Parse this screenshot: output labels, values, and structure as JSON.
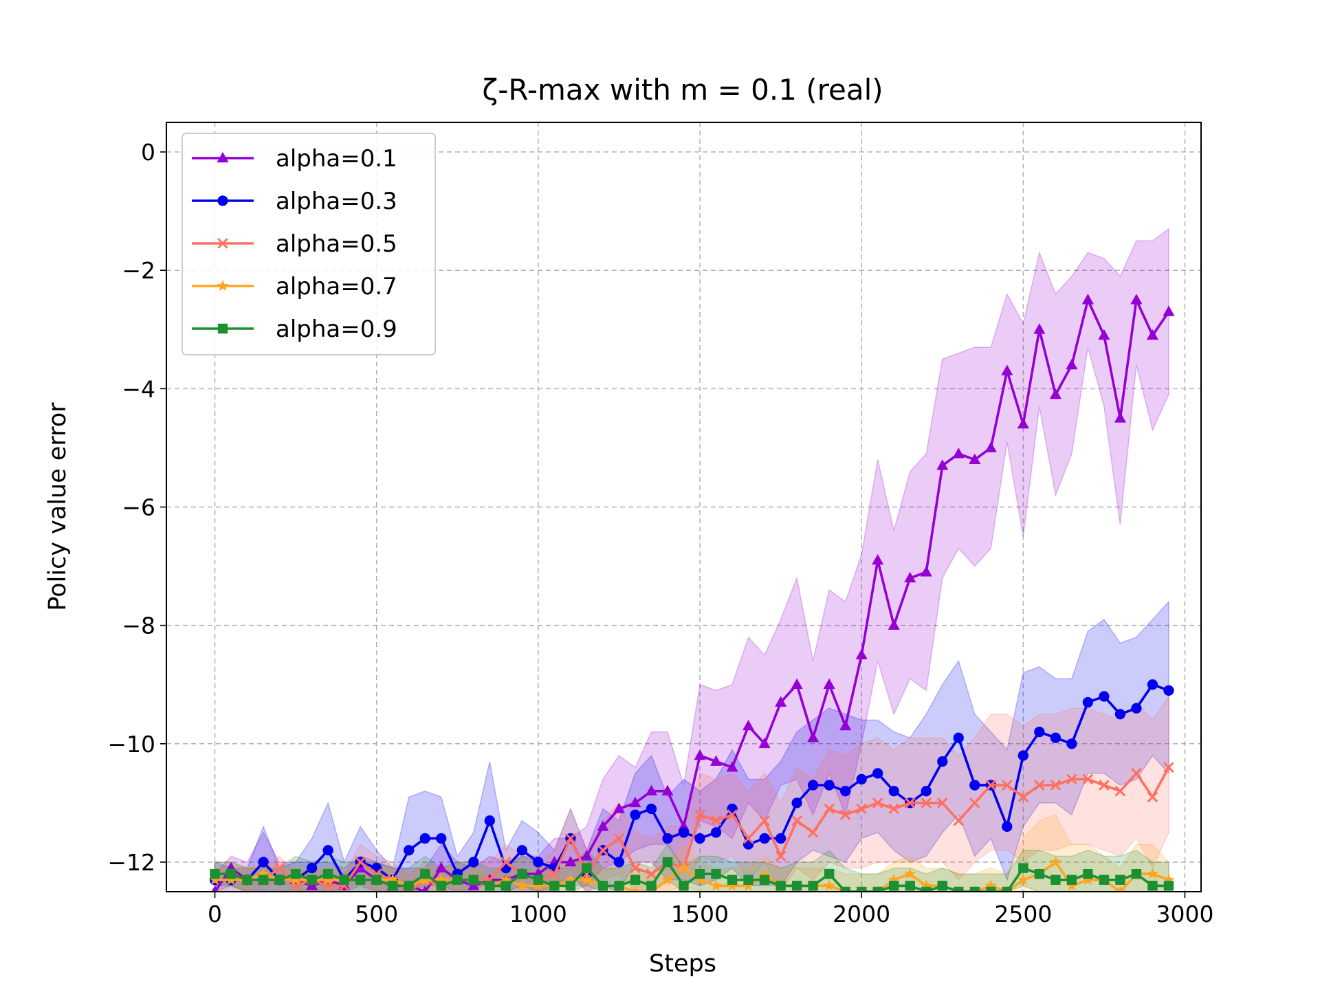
{
  "chart_data": {
    "type": "line",
    "title": "ζ-R-max with m = 0.1 (real)",
    "xlabel": "Steps",
    "ylabel": "Policy value error",
    "xlim": [
      -150,
      3050
    ],
    "ylim": [
      -12.5,
      0.5
    ],
    "xticks": [
      0,
      500,
      1000,
      1500,
      2000,
      2500,
      3000
    ],
    "yticks": [
      0,
      -2,
      -4,
      -6,
      -8,
      -10,
      -12
    ],
    "xtick_labels": [
      "0",
      "500",
      "1000",
      "1500",
      "2000",
      "2500",
      "3000"
    ],
    "ytick_labels": [
      "0",
      "−2",
      "−4",
      "−6",
      "−8",
      "−10",
      "−12"
    ],
    "grid": true,
    "legend_position": "upper-left",
    "x": [
      0,
      50,
      100,
      150,
      200,
      250,
      300,
      350,
      400,
      450,
      500,
      550,
      600,
      650,
      700,
      750,
      800,
      850,
      900,
      950,
      1000,
      1050,
      1100,
      1150,
      1200,
      1250,
      1300,
      1350,
      1400,
      1450,
      1500,
      1550,
      1600,
      1650,
      1700,
      1750,
      1800,
      1850,
      1900,
      1950,
      2000,
      2050,
      2100,
      2150,
      2200,
      2250,
      2300,
      2350,
      2400,
      2450,
      2500,
      2550,
      2600,
      2650,
      2700,
      2750,
      2800,
      2850,
      2900,
      2950
    ],
    "series": [
      {
        "name": "alpha=0.1",
        "color": "#9400D3",
        "marker": "triangle",
        "values": [
          -12.5,
          -12.1,
          -12.3,
          -12.3,
          -12.3,
          -12.3,
          -12.4,
          -12.3,
          -12.4,
          -12.1,
          -12.3,
          -12.4,
          -12.4,
          -12.5,
          -12.1,
          -12.3,
          -12.4,
          -12.3,
          -12.3,
          -12.2,
          -12.2,
          -12.0,
          -12.0,
          -11.9,
          -11.4,
          -11.1,
          -11.0,
          -10.8,
          -10.8,
          -11.4,
          -10.2,
          -10.3,
          -10.4,
          -9.7,
          -10.0,
          -9.3,
          -9.0,
          -9.9,
          -9.0,
          -9.7,
          -8.5,
          -6.9,
          -8.0,
          -7.2,
          -7.1,
          -5.3,
          -5.1,
          -5.2,
          -5.0,
          -3.7,
          -4.6,
          -3.0,
          -4.1,
          -3.6,
          -2.5,
          -3.1,
          -4.5,
          -2.5,
          -3.1,
          -2.7
        ],
        "upper": [
          -12.2,
          -11.9,
          -12.0,
          -11.5,
          -12.0,
          -12.0,
          -12.0,
          -12.0,
          -12.1,
          -11.9,
          -12.0,
          -12.1,
          -12.1,
          -12.1,
          -11.7,
          -12.0,
          -12.1,
          -11.9,
          -12.0,
          -11.9,
          -11.9,
          -11.6,
          -11.6,
          -11.4,
          -10.6,
          -10.2,
          -10.4,
          -9.8,
          -9.8,
          -10.7,
          -9.0,
          -9.1,
          -9.0,
          -8.2,
          -8.5,
          -7.9,
          -7.2,
          -8.6,
          -7.4,
          -7.6,
          -6.8,
          -5.2,
          -6.4,
          -5.4,
          -5.1,
          -3.5,
          -3.4,
          -3.3,
          -3.3,
          -2.4,
          -2.9,
          -1.7,
          -2.4,
          -2.1,
          -1.7,
          -1.8,
          -2.1,
          -1.5,
          -1.5,
          -1.3
        ],
        "lower": [
          -12.5,
          -12.4,
          -12.5,
          -12.5,
          -12.5,
          -12.5,
          -12.5,
          -12.5,
          -12.5,
          -12.4,
          -12.5,
          -12.5,
          -12.5,
          -12.5,
          -12.5,
          -12.5,
          -12.5,
          -12.5,
          -12.5,
          -12.5,
          -12.5,
          -12.4,
          -12.4,
          -12.4,
          -12.1,
          -12.0,
          -11.8,
          -11.7,
          -11.7,
          -12.1,
          -11.3,
          -11.4,
          -11.6,
          -11.0,
          -11.3,
          -10.7,
          -10.6,
          -11.2,
          -10.5,
          -11.2,
          -10.0,
          -8.6,
          -9.5,
          -8.9,
          -9.1,
          -7.2,
          -6.7,
          -7.0,
          -6.7,
          -4.9,
          -6.5,
          -4.3,
          -5.8,
          -5.1,
          -3.3,
          -4.3,
          -6.3,
          -3.6,
          -4.7,
          -4.1
        ]
      },
      {
        "name": "alpha=0.3",
        "color": "#0000EE",
        "marker": "circle",
        "values": [
          -12.3,
          -12.3,
          -12.3,
          -12.0,
          -12.3,
          -12.3,
          -12.1,
          -11.8,
          -12.3,
          -12.0,
          -12.1,
          -12.3,
          -11.8,
          -11.6,
          -11.6,
          -12.2,
          -12.0,
          -11.3,
          -12.1,
          -11.8,
          -12.0,
          -12.1,
          -11.6,
          -12.2,
          -11.8,
          -12.0,
          -11.2,
          -11.1,
          -11.6,
          -11.5,
          -11.6,
          -11.5,
          -11.1,
          -11.7,
          -11.6,
          -11.6,
          -11.0,
          -10.7,
          -10.7,
          -10.8,
          -10.6,
          -10.5,
          -10.8,
          -11.0,
          -10.8,
          -10.3,
          -9.9,
          -10.7,
          -10.7,
          -11.4,
          -10.2,
          -9.8,
          -9.9,
          -10.0,
          -9.3,
          -9.2,
          -9.5,
          -9.4,
          -9.0,
          -9.1
        ],
        "upper": [
          -12.0,
          -12.1,
          -12.1,
          -11.4,
          -12.1,
          -12.0,
          -11.6,
          -11.0,
          -12.0,
          -11.4,
          -11.8,
          -12.1,
          -10.9,
          -10.8,
          -10.9,
          -11.9,
          -11.5,
          -10.3,
          -11.8,
          -11.3,
          -11.5,
          -11.8,
          -11.1,
          -11.8,
          -11.1,
          -11.3,
          -10.5,
          -10.2,
          -10.9,
          -10.6,
          -10.8,
          -10.6,
          -10.1,
          -10.6,
          -10.6,
          -10.3,
          -9.8,
          -9.6,
          -9.4,
          -9.5,
          -9.6,
          -9.6,
          -9.8,
          -9.9,
          -9.5,
          -9.0,
          -8.6,
          -9.5,
          -9.8,
          -10.1,
          -8.8,
          -8.7,
          -8.9,
          -8.9,
          -8.1,
          -7.9,
          -8.3,
          -8.2,
          -7.9,
          -7.6
        ],
        "lower": [
          -12.5,
          -12.5,
          -12.5,
          -12.5,
          -12.5,
          -12.5,
          -12.5,
          -12.5,
          -12.5,
          -12.5,
          -12.5,
          -12.5,
          -12.5,
          -12.4,
          -12.4,
          -12.5,
          -12.5,
          -12.3,
          -12.5,
          -12.4,
          -12.5,
          -12.5,
          -12.2,
          -12.5,
          -12.4,
          -12.5,
          -12.0,
          -12.0,
          -12.3,
          -12.3,
          -12.4,
          -12.3,
          -12.1,
          -12.4,
          -12.4,
          -12.4,
          -12.0,
          -11.8,
          -11.9,
          -12.0,
          -11.6,
          -11.5,
          -11.8,
          -12.0,
          -11.9,
          -11.5,
          -11.2,
          -11.9,
          -11.6,
          -12.3,
          -11.4,
          -11.0,
          -11.0,
          -11.2,
          -10.5,
          -10.5,
          -10.7,
          -10.6,
          -10.2,
          -10.5
        ]
      },
      {
        "name": "alpha=0.5",
        "color": "#FF7060",
        "marker": "x",
        "values": [
          -12.2,
          -12.2,
          -12.3,
          -12.3,
          -12.1,
          -12.4,
          -12.3,
          -12.4,
          -12.4,
          -12.0,
          -12.2,
          -12.3,
          -12.5,
          -12.3,
          -12.4,
          -12.3,
          -12.3,
          -12.3,
          -12.0,
          -12.2,
          -12.3,
          -12.2,
          -11.6,
          -12.2,
          -11.8,
          -11.6,
          -12.1,
          -12.2,
          -12.0,
          -12.1,
          -11.2,
          -11.3,
          -11.2,
          -11.6,
          -11.3,
          -11.9,
          -11.3,
          -11.5,
          -11.1,
          -11.2,
          -11.1,
          -11.0,
          -11.1,
          -11.0,
          -11.0,
          -11.0,
          -11.3,
          -11.0,
          -10.7,
          -10.7,
          -10.9,
          -10.7,
          -10.7,
          -10.6,
          -10.6,
          -10.7,
          -10.8,
          -10.5,
          -10.9,
          -10.4
        ],
        "upper": [
          -12.0,
          -12.0,
          -12.1,
          -12.1,
          -11.9,
          -12.2,
          -12.1,
          -12.2,
          -12.2,
          -11.7,
          -11.9,
          -12.0,
          -12.2,
          -12.0,
          -12.1,
          -12.0,
          -12.0,
          -12.0,
          -11.7,
          -11.9,
          -12.0,
          -11.8,
          -11.1,
          -11.8,
          -11.3,
          -11.0,
          -11.5,
          -11.6,
          -11.4,
          -11.4,
          -10.5,
          -10.6,
          -10.5,
          -10.8,
          -10.5,
          -11.0,
          -10.4,
          -10.6,
          -10.1,
          -10.2,
          -10.0,
          -9.9,
          -10.1,
          -9.9,
          -9.9,
          -9.9,
          -10.2,
          -9.9,
          -9.5,
          -9.5,
          -9.7,
          -9.5,
          -9.5,
          -9.4,
          -9.4,
          -9.5,
          -9.6,
          -9.3,
          -9.6,
          -9.2
        ],
        "lower": [
          -12.4,
          -12.4,
          -12.5,
          -12.5,
          -12.3,
          -12.5,
          -12.5,
          -12.5,
          -12.5,
          -12.3,
          -12.5,
          -12.5,
          -12.5,
          -12.5,
          -12.5,
          -12.5,
          -12.5,
          -12.5,
          -12.3,
          -12.5,
          -12.5,
          -12.5,
          -12.1,
          -12.5,
          -12.3,
          -12.2,
          -12.5,
          -12.5,
          -12.5,
          -12.5,
          -11.9,
          -12.0,
          -11.9,
          -12.3,
          -12.0,
          -12.5,
          -12.1,
          -12.3,
          -12.0,
          -12.1,
          -12.1,
          -12.0,
          -12.0,
          -12.0,
          -12.0,
          -12.0,
          -12.3,
          -12.0,
          -11.8,
          -11.8,
          -12.0,
          -11.8,
          -11.8,
          -11.7,
          -11.7,
          -11.8,
          -11.9,
          -11.6,
          -12.1,
          -11.5
        ]
      },
      {
        "name": "alpha=0.7",
        "color": "#FFA520",
        "marker": "star",
        "values": [
          -12.3,
          -12.3,
          -12.3,
          -12.2,
          -12.3,
          -12.3,
          -12.3,
          -12.3,
          -12.3,
          -12.3,
          -12.3,
          -12.3,
          -12.4,
          -12.3,
          -12.3,
          -12.3,
          -12.3,
          -12.4,
          -12.3,
          -12.4,
          -12.4,
          -12.4,
          -12.3,
          -12.3,
          -12.4,
          -12.4,
          -12.5,
          -12.5,
          -12.3,
          -12.1,
          -12.3,
          -12.4,
          -12.4,
          -12.4,
          -12.2,
          -12.4,
          -12.4,
          -12.4,
          -12.4,
          -12.5,
          -12.5,
          -12.5,
          -12.3,
          -12.2,
          -12.4,
          -12.4,
          -12.5,
          -12.5,
          -12.4,
          -12.5,
          -12.3,
          -12.2,
          -12.0,
          -12.4,
          -12.3,
          -12.3,
          -12.5,
          -12.2,
          -12.2,
          -12.3
        ],
        "upper": [
          -12.1,
          -12.1,
          -12.1,
          -12.0,
          -12.1,
          -12.1,
          -12.1,
          -12.1,
          -12.1,
          -12.1,
          -12.1,
          -12.1,
          -12.2,
          -12.1,
          -12.1,
          -12.1,
          -12.1,
          -12.2,
          -12.1,
          -12.2,
          -12.1,
          -12.1,
          -12.0,
          -12.0,
          -12.1,
          -12.1,
          -12.2,
          -12.2,
          -12.0,
          -11.7,
          -12.0,
          -12.1,
          -12.1,
          -12.1,
          -11.9,
          -12.1,
          -12.1,
          -12.1,
          -12.1,
          -12.2,
          -12.2,
          -12.2,
          -12.0,
          -11.9,
          -12.1,
          -12.1,
          -12.2,
          -12.2,
          -12.1,
          -12.2,
          -11.6,
          -11.3,
          -11.2,
          -11.7,
          -11.7,
          -11.9,
          -12.1,
          -11.7,
          -11.7,
          -12.0
        ],
        "lower": [
          -12.5,
          -12.5,
          -12.5,
          -12.4,
          -12.5,
          -12.5,
          -12.5,
          -12.5,
          -12.5,
          -12.5,
          -12.5,
          -12.5,
          -12.5,
          -12.5,
          -12.5,
          -12.5,
          -12.5,
          -12.5,
          -12.5,
          -12.5,
          -12.5,
          -12.5,
          -12.5,
          -12.5,
          -12.5,
          -12.5,
          -12.5,
          -12.5,
          -12.5,
          -12.4,
          -12.5,
          -12.5,
          -12.5,
          -12.5,
          -12.5,
          -12.5,
          -12.5,
          -12.5,
          -12.5,
          -12.5,
          -12.5,
          -12.5,
          -12.5,
          -12.5,
          -12.5,
          -12.5,
          -12.5,
          -12.5,
          -12.5,
          -12.5,
          -12.5,
          -12.5,
          -12.5,
          -12.5,
          -12.5,
          -12.5,
          -12.5,
          -12.5,
          -12.5,
          -12.5
        ]
      },
      {
        "name": "alpha=0.9",
        "color": "#1A9030",
        "marker": "square",
        "values": [
          -12.2,
          -12.2,
          -12.3,
          -12.3,
          -12.3,
          -12.2,
          -12.3,
          -12.2,
          -12.3,
          -12.3,
          -12.3,
          -12.4,
          -12.4,
          -12.2,
          -12.4,
          -12.3,
          -12.3,
          -12.4,
          -12.4,
          -12.2,
          -12.3,
          -12.4,
          -12.4,
          -12.1,
          -12.4,
          -12.4,
          -12.3,
          -12.4,
          -12.0,
          -12.4,
          -12.2,
          -12.2,
          -12.3,
          -12.3,
          -12.3,
          -12.4,
          -12.4,
          -12.4,
          -12.2,
          -12.5,
          -12.5,
          -12.5,
          -12.4,
          -12.4,
          -12.5,
          -12.4,
          -12.5,
          -12.5,
          -12.5,
          -12.5,
          -12.1,
          -12.2,
          -12.3,
          -12.3,
          -12.2,
          -12.3,
          -12.3,
          -12.2,
          -12.4,
          -12.4
        ],
        "upper": [
          -12.0,
          -12.0,
          -12.1,
          -12.1,
          -12.1,
          -11.9,
          -12.0,
          -11.9,
          -12.0,
          -12.0,
          -12.0,
          -12.1,
          -12.1,
          -11.9,
          -12.1,
          -12.0,
          -12.0,
          -12.1,
          -12.1,
          -11.9,
          -12.0,
          -12.1,
          -12.1,
          -11.8,
          -12.1,
          -12.1,
          -12.0,
          -12.1,
          -11.7,
          -12.1,
          -11.9,
          -11.9,
          -12.0,
          -12.0,
          -12.0,
          -12.1,
          -12.0,
          -12.0,
          -11.8,
          -12.1,
          -12.2,
          -12.2,
          -12.1,
          -12.1,
          -12.2,
          -12.1,
          -12.2,
          -12.2,
          -12.2,
          -12.2,
          -11.8,
          -11.8,
          -11.9,
          -11.9,
          -11.8,
          -11.9,
          -11.9,
          -11.8,
          -12.0,
          -12.0
        ],
        "lower": [
          -12.4,
          -12.4,
          -12.5,
          -12.5,
          -12.5,
          -12.5,
          -12.5,
          -12.5,
          -12.5,
          -12.5,
          -12.5,
          -12.5,
          -12.5,
          -12.5,
          -12.5,
          -12.5,
          -12.5,
          -12.5,
          -12.5,
          -12.5,
          -12.5,
          -12.5,
          -12.5,
          -12.4,
          -12.5,
          -12.5,
          -12.5,
          -12.5,
          -12.3,
          -12.5,
          -12.5,
          -12.5,
          -12.5,
          -12.5,
          -12.5,
          -12.5,
          -12.5,
          -12.5,
          -12.5,
          -12.5,
          -12.5,
          -12.5,
          -12.5,
          -12.5,
          -12.5,
          -12.5,
          -12.5,
          -12.5,
          -12.5,
          -12.5,
          -12.4,
          -12.5,
          -12.5,
          -12.5,
          -12.5,
          -12.5,
          -12.5,
          -12.5,
          -12.5,
          -12.5
        ]
      }
    ]
  }
}
